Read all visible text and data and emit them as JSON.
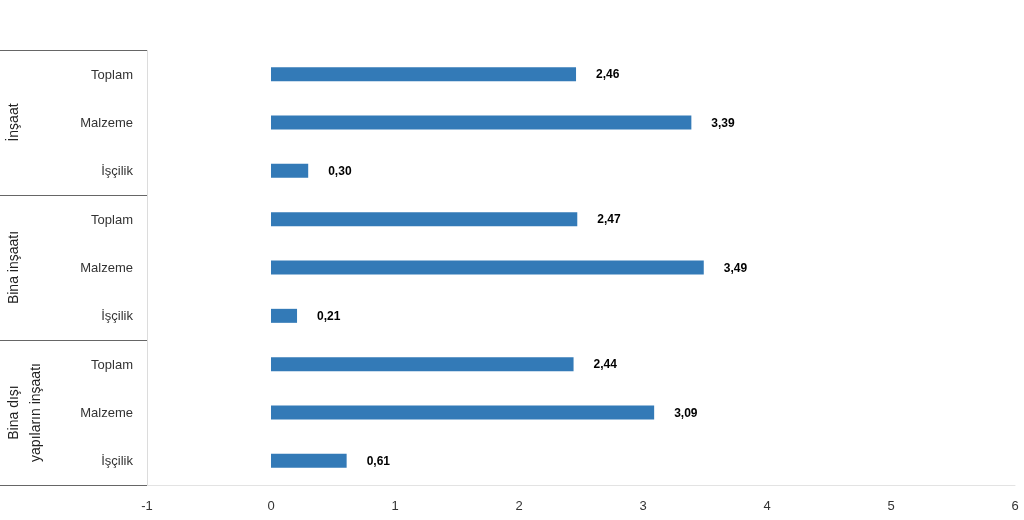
{
  "chart_data": [
    {
      "type": "bar",
      "orientation": "horizontal",
      "ylabel": "İnşaat",
      "categories": [
        "Toplam",
        "Malzeme",
        "İşçilik"
      ],
      "values": [
        2.46,
        3.39,
        0.3
      ],
      "value_labels": [
        "2,46",
        "3,39",
        "0,30"
      ],
      "color": "#337ab7",
      "xlim": [
        -1,
        6
      ],
      "xticks": [
        -1,
        0,
        1,
        2,
        3,
        4,
        5,
        6
      ],
      "grid": false,
      "tick_labels": "y"
    },
    {
      "type": "bar",
      "orientation": "horizontal",
      "ylabel": "Bina inşaatı",
      "categories": [
        "Toplam",
        "Malzeme",
        "İşçilik"
      ],
      "values": [
        2.47,
        3.49,
        0.21
      ],
      "value_labels": [
        "2,47",
        "3,49",
        "0,21"
      ],
      "color": "#337ab7",
      "xlim": [
        -1,
        6
      ],
      "xticks": [
        -1,
        0,
        1,
        2,
        3,
        4,
        5,
        6
      ],
      "grid": false,
      "tick_labels": "y"
    },
    {
      "type": "bar",
      "orientation": "horizontal",
      "ylabel": "Bina dışı yapıların inşaatı",
      "categories": [
        "Toplam",
        "Malzeme",
        "İşçilik"
      ],
      "values": [
        2.44,
        3.09,
        0.61
      ],
      "value_labels": [
        "2,44",
        "3,09",
        "0,61"
      ],
      "color": "#337ab7",
      "xlim": [
        -1,
        6
      ],
      "xticks": [
        -1,
        0,
        1,
        2,
        3,
        4,
        5,
        6
      ],
      "grid": false
    }
  ]
}
